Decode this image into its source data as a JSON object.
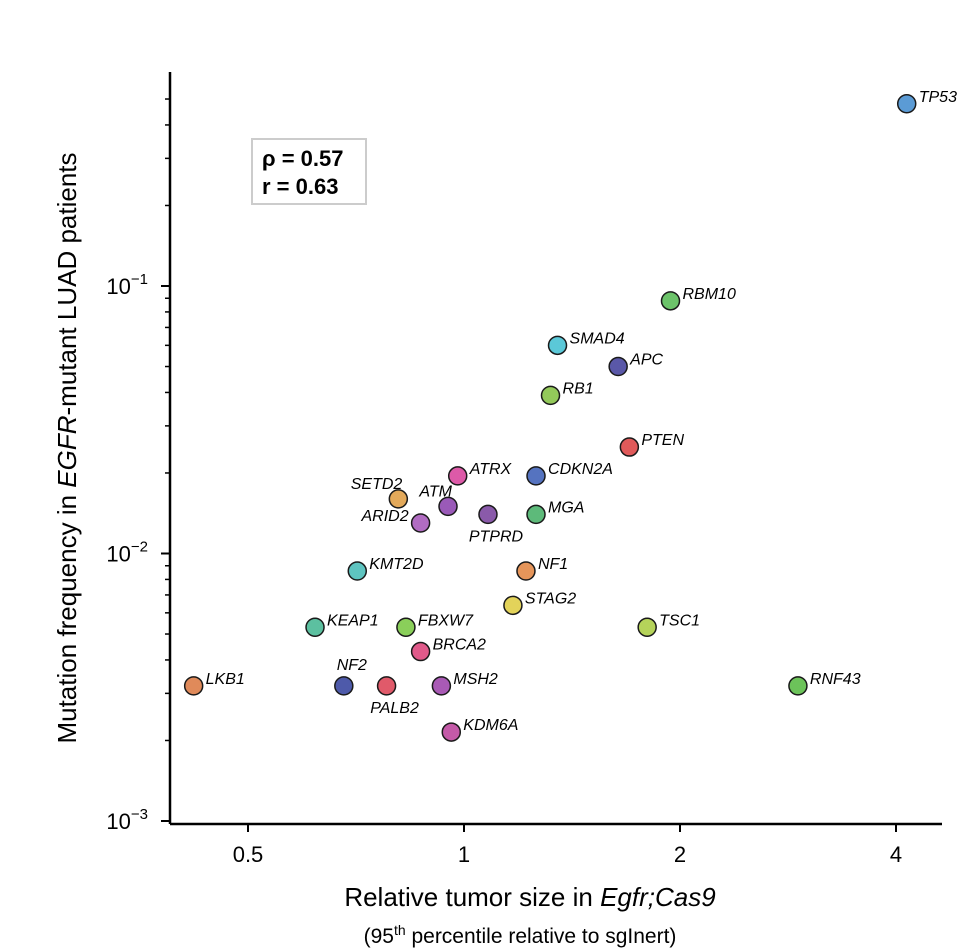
{
  "chart_data": {
    "type": "scatter",
    "x_scale": "log",
    "y_scale": "log",
    "xlim": [
      0.4,
      5.3
    ],
    "ylim": [
      0.001,
      0.6
    ],
    "x_ticks": [
      {
        "value": 0.5,
        "label": "0.5"
      },
      {
        "value": 1,
        "label": "1"
      },
      {
        "value": 2,
        "label": "2"
      },
      {
        "value": 4,
        "label": "4"
      }
    ],
    "y_ticks": [
      {
        "value": 0.001,
        "base": "10",
        "exp": "−3"
      },
      {
        "value": 0.01,
        "base": "10",
        "exp": "−2"
      },
      {
        "value": 0.1,
        "base": "10",
        "exp": "−1"
      }
    ],
    "xlabel": {
      "prefix": "Relative tumor size in ",
      "italic": "Egfr;Cas9"
    },
    "xlabel_sub": {
      "prefix": "(95",
      "sup": "th",
      "suffix": " percentile relative to sgInert)"
    },
    "ylabel": {
      "prefix": "Mutation frequency in ",
      "italic": "EGFR",
      "suffix": "-mutant LUAD patients"
    },
    "stats": [
      "ρ = 0.57",
      "r = 0.63"
    ],
    "points": [
      {
        "name": "TP53",
        "x": 4.14,
        "y": 0.48,
        "color": "#5b9bd5",
        "label_pos": "right"
      },
      {
        "name": "RBM10",
        "x": 1.94,
        "y": 0.088,
        "color": "#6cc36a",
        "label_pos": "right"
      },
      {
        "name": "SMAD4",
        "x": 1.35,
        "y": 0.06,
        "color": "#5bc8d8",
        "label_pos": "right"
      },
      {
        "name": "APC",
        "x": 1.64,
        "y": 0.05,
        "color": "#5a58a8",
        "label_pos": "right"
      },
      {
        "name": "RB1",
        "x": 1.32,
        "y": 0.039,
        "color": "#93c95a",
        "label_pos": "right"
      },
      {
        "name": "PTEN",
        "x": 1.7,
        "y": 0.025,
        "color": "#e05a5a",
        "label_pos": "right"
      },
      {
        "name": "ATRX",
        "x": 0.98,
        "y": 0.0195,
        "color": "#dd5aa8",
        "label_pos": "right"
      },
      {
        "name": "CDKN2A",
        "x": 1.26,
        "y": 0.0195,
        "color": "#5573c0",
        "label_pos": "right"
      },
      {
        "name": "SETD2",
        "x": 0.81,
        "y": 0.016,
        "color": "#e3a95a",
        "label_pos": "above-left"
      },
      {
        "name": "ATM",
        "x": 0.95,
        "y": 0.015,
        "color": "#9a5ab8",
        "label_pos": "above-left"
      },
      {
        "name": "ARID2",
        "x": 0.87,
        "y": 0.013,
        "color": "#b16cc2",
        "label_pos": "left"
      },
      {
        "name": "PTPRD",
        "x": 1.08,
        "y": 0.014,
        "color": "#8a5aaa",
        "label_pos": "below"
      },
      {
        "name": "MGA",
        "x": 1.26,
        "y": 0.014,
        "color": "#5dba7a",
        "label_pos": "right"
      },
      {
        "name": "KMT2D",
        "x": 0.71,
        "y": 0.0086,
        "color": "#5ec4c0",
        "label_pos": "right"
      },
      {
        "name": "NF1",
        "x": 1.22,
        "y": 0.0086,
        "color": "#e6955a",
        "label_pos": "right"
      },
      {
        "name": "STAG2",
        "x": 1.17,
        "y": 0.0064,
        "color": "#e3d35a",
        "label_pos": "right"
      },
      {
        "name": "TSC1",
        "x": 1.8,
        "y": 0.0053,
        "color": "#b5d35a",
        "label_pos": "right"
      },
      {
        "name": "KEAP1",
        "x": 0.62,
        "y": 0.0053,
        "color": "#5cc0a0",
        "label_pos": "right"
      },
      {
        "name": "FBXW7",
        "x": 0.83,
        "y": 0.0053,
        "color": "#8acf5a",
        "label_pos": "right"
      },
      {
        "name": "BRCA2",
        "x": 0.87,
        "y": 0.0043,
        "color": "#e05a8a",
        "label_pos": "right"
      },
      {
        "name": "LKB1",
        "x": 0.42,
        "y": 0.0032,
        "color": "#e08a5a",
        "label_pos": "right"
      },
      {
        "name": "NF2",
        "x": 0.68,
        "y": 0.0032,
        "color": "#4e5aaa",
        "label_pos": "above"
      },
      {
        "name": "PALB2",
        "x": 0.78,
        "y": 0.0032,
        "color": "#e05a6a",
        "label_pos": "below"
      },
      {
        "name": "MSH2",
        "x": 0.93,
        "y": 0.0032,
        "color": "#a95ab5",
        "label_pos": "right"
      },
      {
        "name": "RNF43",
        "x": 2.92,
        "y": 0.0032,
        "color": "#6cc35a",
        "label_pos": "right"
      },
      {
        "name": "KDM6A",
        "x": 0.96,
        "y": 0.00215,
        "color": "#c45aa8",
        "label_pos": "right"
      }
    ]
  }
}
